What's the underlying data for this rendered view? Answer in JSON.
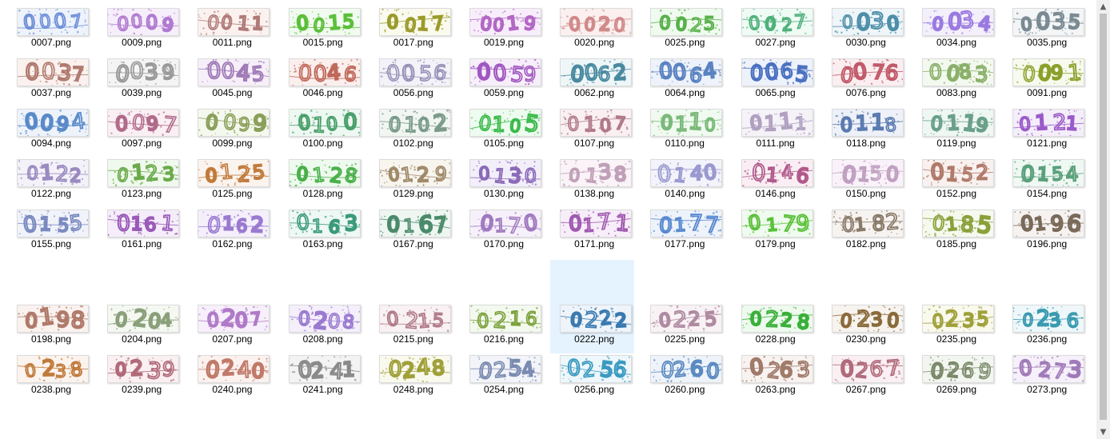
{
  "files": [
    {
      "name": "0007.png",
      "code": "0007",
      "color": "#6f8fd8",
      "bg": "#eef3fb"
    },
    {
      "name": "0009.png",
      "code": "0009",
      "color": "#b07ad0",
      "bg": "#f6eefb"
    },
    {
      "name": "0011.png",
      "code": "0011",
      "color": "#b07a78",
      "bg": "#fbf2ef"
    },
    {
      "name": "0015.png",
      "code": "0015",
      "color": "#5cbf3a",
      "bg": "#f1fbef"
    },
    {
      "name": "0017.png",
      "code": "0017",
      "color": "#9b9b2a",
      "bg": "#fbfaee"
    },
    {
      "name": "0019.png",
      "code": "0019",
      "color": "#b368c6",
      "bg": "#f8eefb"
    },
    {
      "name": "0020.png",
      "code": "0020",
      "color": "#d08a8a",
      "bg": "#fbefef"
    },
    {
      "name": "0025.png",
      "code": "0025",
      "color": "#58b04a",
      "bg": "#f0fbef"
    },
    {
      "name": "0027.png",
      "code": "0027",
      "color": "#4fb07a",
      "bg": "#effbf5"
    },
    {
      "name": "0030.png",
      "code": "0030",
      "color": "#4e8ea8",
      "bg": "#eef6fa"
    },
    {
      "name": "0034.png",
      "code": "0034",
      "color": "#9a7ae0",
      "bg": "#f3effb"
    },
    {
      "name": "0035.png",
      "code": "0035",
      "color": "#7a8a92",
      "bg": "#f3f5f6"
    },
    {
      "name": "0037.png",
      "code": "0037",
      "color": "#b07a6e",
      "bg": "#fbf1ee"
    },
    {
      "name": "0039.png",
      "code": "0039",
      "color": "#9a9a9a",
      "bg": "#f4f4f4"
    },
    {
      "name": "0045.png",
      "code": "0045",
      "color": "#a07ab8",
      "bg": "#f6eff9"
    },
    {
      "name": "0046.png",
      "code": "0046",
      "color": "#c0685a",
      "bg": "#fbefed"
    },
    {
      "name": "0056.png",
      "code": "0056",
      "color": "#9890b8",
      "bg": "#f3f2f9"
    },
    {
      "name": "0059.png",
      "code": "0059",
      "color": "#a058c0",
      "bg": "#f7eefb"
    },
    {
      "name": "0062.png",
      "code": "0062",
      "color": "#4a8aa0",
      "bg": "#eef6f8"
    },
    {
      "name": "0064.png",
      "code": "0064",
      "color": "#5a82c0",
      "bg": "#eef2fa"
    },
    {
      "name": "0065.png",
      "code": "0065",
      "color": "#4a70c0",
      "bg": "#eef2fb"
    },
    {
      "name": "0076.png",
      "code": "0076",
      "color": "#c05a6a",
      "bg": "#fbeef0"
    },
    {
      "name": "0083.png",
      "code": "0083",
      "color": "#8ab06a",
      "bg": "#f3f9ef"
    },
    {
      "name": "0091.png",
      "code": "0091",
      "color": "#8aa02a",
      "bg": "#f7faee"
    },
    {
      "name": "0094.png",
      "code": "0094",
      "color": "#5a8ac8",
      "bg": "#eef3fb"
    },
    {
      "name": "0097.png",
      "code": "0097",
      "color": "#b06a8a",
      "bg": "#faeff3"
    },
    {
      "name": "0099.png",
      "code": "0099",
      "color": "#8aa05a",
      "bg": "#f5f8ee"
    },
    {
      "name": "0100.png",
      "code": "0100",
      "color": "#4aa06a",
      "bg": "#eef8f2"
    },
    {
      "name": "0102.png",
      "code": "0102",
      "color": "#7a9a8a",
      "bg": "#f1f6f3"
    },
    {
      "name": "0105.png",
      "code": "0105",
      "color": "#3aba4a",
      "bg": "#eefbf0"
    },
    {
      "name": "0107.png",
      "code": "0107",
      "color": "#b07a8a",
      "bg": "#faf0f2"
    },
    {
      "name": "0110.png",
      "code": "0110",
      "color": "#7aba7a",
      "bg": "#f1faf1"
    },
    {
      "name": "0111.png",
      "code": "0111",
      "color": "#b0a0c0",
      "bg": "#f5f2f8"
    },
    {
      "name": "0118.png",
      "code": "0118",
      "color": "#5a7ab0",
      "bg": "#eef1f8"
    },
    {
      "name": "0119.png",
      "code": "0119",
      "color": "#6aa08a",
      "bg": "#eff7f3"
    },
    {
      "name": "0121.png",
      "code": "0121",
      "color": "#9a5ac8",
      "bg": "#f4eefb"
    },
    {
      "name": "0122.png",
      "code": "0122",
      "color": "#9a8ac0",
      "bg": "#f4f2f9"
    },
    {
      "name": "0123.png",
      "code": "0123",
      "color": "#6aaa4a",
      "bg": "#f0f9ee"
    },
    {
      "name": "0125.png",
      "code": "0125",
      "color": "#c07a3a",
      "bg": "#fbf3ee"
    },
    {
      "name": "0128.png",
      "code": "0128",
      "color": "#4ab04a",
      "bg": "#eefaee"
    },
    {
      "name": "0129.png",
      "code": "0129",
      "color": "#a08a6a",
      "bg": "#f8f5ef"
    },
    {
      "name": "0130.png",
      "code": "0130",
      "color": "#8a6ab8",
      "bg": "#f3effa"
    },
    {
      "name": "0138.png",
      "code": "0138",
      "color": "#c0a0b8",
      "bg": "#faf3f7"
    },
    {
      "name": "0140.png",
      "code": "0140",
      "color": "#9a9ad0",
      "bg": "#f3f3fb"
    },
    {
      "name": "0146.png",
      "code": "0146",
      "color": "#b05a8a",
      "bg": "#faeef4"
    },
    {
      "name": "0150.png",
      "code": "0150",
      "color": "#c0a0c0",
      "bg": "#faf2fa"
    },
    {
      "name": "0152.png",
      "code": "0152",
      "color": "#b07a6a",
      "bg": "#f8f1ef"
    },
    {
      "name": "0154.png",
      "code": "0154",
      "color": "#5aa07a",
      "bg": "#eff8f3"
    },
    {
      "name": "0155.png",
      "code": "0155",
      "color": "#7a8ac0",
      "bg": "#f1f3fa"
    },
    {
      "name": "0161.png",
      "code": "0161",
      "color": "#9a5ab8",
      "bg": "#f5eefa"
    },
    {
      "name": "0162.png",
      "code": "0162",
      "color": "#9a7ad0",
      "bg": "#f4effb"
    },
    {
      "name": "0163.png",
      "code": "0163",
      "color": "#3a9a7a",
      "bg": "#eef8f4"
    },
    {
      "name": "0167.png",
      "code": "0167",
      "color": "#4a8a6a",
      "bg": "#eef6f1"
    },
    {
      "name": "0170.png",
      "code": "0170",
      "color": "#a07ac0",
      "bg": "#f6f0fa"
    },
    {
      "name": "0171.png",
      "code": "0171",
      "color": "#a05ab0",
      "bg": "#f7eef9"
    },
    {
      "name": "0177.png",
      "code": "0177",
      "color": "#5a8ad0",
      "bg": "#eef3fb"
    },
    {
      "name": "0179.png",
      "code": "0179",
      "color": "#5ac03a",
      "bg": "#effbee"
    },
    {
      "name": "0182.png",
      "code": "0182",
      "color": "#8a7a6a",
      "bg": "#f6f3f0"
    },
    {
      "name": "0185.png",
      "code": "0185",
      "color": "#8aa03a",
      "bg": "#f6f9ee"
    },
    {
      "name": "0196.png",
      "code": "0196",
      "color": "#7a6a5a",
      "bg": "#f5f2f0"
    },
    {
      "name": "0198.png",
      "code": "0198",
      "color": "#b07a6a",
      "bg": "#faf2ef"
    },
    {
      "name": "0204.png",
      "code": "0204",
      "color": "#8aa07a",
      "bg": "#f4f8f1"
    },
    {
      "name": "0207.png",
      "code": "0207",
      "color": "#b07ac8",
      "bg": "#f7effb"
    },
    {
      "name": "0208.png",
      "code": "0208",
      "color": "#9a7ad0",
      "bg": "#f4effb"
    },
    {
      "name": "0215.png",
      "code": "0215",
      "color": "#b07a8a",
      "bg": "#f9f1f3"
    },
    {
      "name": "0216.png",
      "code": "0216",
      "color": "#7aa03a",
      "bg": "#f3f9ee"
    },
    {
      "name": "0222.png",
      "code": "0222",
      "color": "#3a7ab0",
      "bg": "#eef4fa"
    },
    {
      "name": "0225.png",
      "code": "0225",
      "color": "#b08aa0",
      "bg": "#f8f2f5"
    },
    {
      "name": "0228.png",
      "code": "0228",
      "color": "#3ab03a",
      "bg": "#eefaee"
    },
    {
      "name": "0230.png",
      "code": "0230",
      "color": "#8a6a3a",
      "bg": "#f7f3ee"
    },
    {
      "name": "0235.png",
      "code": "0235",
      "color": "#a0a03a",
      "bg": "#f9f9ee"
    },
    {
      "name": "0236.png",
      "code": "0236",
      "color": "#3a9ab0",
      "bg": "#eef7fa"
    },
    {
      "name": "0238.png",
      "code": "0238",
      "color": "#c07a3a",
      "bg": "#fbf3ee"
    },
    {
      "name": "0239.png",
      "code": "0239",
      "color": "#b06a7a",
      "bg": "#faeff1"
    },
    {
      "name": "0240.png",
      "code": "0240",
      "color": "#c07a6a",
      "bg": "#fbf2ef"
    },
    {
      "name": "0241.png",
      "code": "0241",
      "color": "#8a8a8a",
      "bg": "#f3f3f3"
    },
    {
      "name": "0248.png",
      "code": "0248",
      "color": "#a0a03a",
      "bg": "#f9f9ee"
    },
    {
      "name": "0254.png",
      "code": "0254",
      "color": "#7a8ab0",
      "bg": "#f2f4f9"
    },
    {
      "name": "0256.png",
      "code": "0256",
      "color": "#3a9ac0",
      "bg": "#eef7fb"
    },
    {
      "name": "0260.png",
      "code": "0260",
      "color": "#5a8ac0",
      "bg": "#eef3fa"
    },
    {
      "name": "0263.png",
      "code": "0263",
      "color": "#a07a6a",
      "bg": "#f8f3f0"
    },
    {
      "name": "0267.png",
      "code": "0267",
      "color": "#b06a7a",
      "bg": "#faeff2"
    },
    {
      "name": "0269.png",
      "code": "0269",
      "color": "#7a8a6a",
      "bg": "#f3f6f0"
    },
    {
      "name": "0273.png",
      "code": "0273",
      "color": "#a07ab8",
      "bg": "#f6f0fa"
    }
  ],
  "selected_file": "0222.png",
  "scrollbar": {
    "up_icon": "scroll-up-arrow-icon",
    "down_icon": "scroll-down-arrow-icon"
  }
}
